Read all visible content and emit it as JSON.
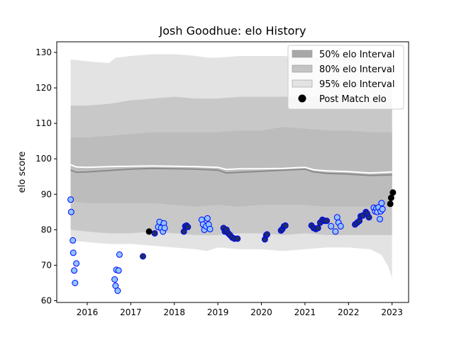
{
  "chart_data": {
    "type": "scatter",
    "title": "Josh Goodhue: elo History",
    "xlabel": "",
    "ylabel": "elo score",
    "xlim": [
      2015.3,
      2023.38
    ],
    "ylim": [
      59.5,
      133
    ],
    "x_ticks": [
      2016,
      2017,
      2018,
      2019,
      2020,
      2021,
      2022,
      2023
    ],
    "y_ticks": [
      60,
      70,
      80,
      90,
      100,
      110,
      120,
      130
    ],
    "grid": false,
    "legend_position": "top-right",
    "legend": [
      {
        "label": "50% elo Interval",
        "kind": "patch",
        "color": "#a8a8a8"
      },
      {
        "label": "80% elo Interval",
        "kind": "patch",
        "color": "#c4c4c4"
      },
      {
        "label": "95% elo Interval",
        "kind": "patch",
        "color": "#e3e3e3"
      },
      {
        "label": "Post Match elo",
        "kind": "marker",
        "color": "#000000"
      }
    ],
    "colors": {
      "band95": "#e3e3e3",
      "band80": "#c8c8c8",
      "band50": "#bcbcbc",
      "median_line": "#8a8a8a",
      "mean_line": "#ffffff",
      "light_point": "#8ec5ff",
      "dark_point": "#1c2f66",
      "point_edge": "#0000ff",
      "black_point": "#000000"
    },
    "series": [
      {
        "name": "95% elo Interval",
        "x": [
          2015.62,
          2016.0,
          2016.5,
          2016.65,
          2017.0,
          2017.5,
          2018.0,
          2018.5,
          2018.75,
          2019.0,
          2019.5,
          2020.0,
          2020.5,
          2021.0,
          2021.5,
          2022.0,
          2022.5,
          2022.75,
          2022.9,
          2023.0
        ],
        "lower": [
          77,
          76.5,
          76,
          76,
          76,
          75.5,
          75,
          74.5,
          74,
          75,
          74.5,
          74.5,
          74,
          74.5,
          75,
          75,
          74.5,
          73,
          70,
          66.5
        ],
        "upper": [
          128,
          127.5,
          127,
          128.5,
          129,
          129.5,
          129.5,
          129,
          128.5,
          128.5,
          129,
          129,
          129,
          128.5,
          128.5,
          128.5,
          128.5,
          128.5,
          129,
          129
        ]
      },
      {
        "name": "80% elo Interval",
        "x": [
          2015.62,
          2016.0,
          2016.5,
          2017.0,
          2017.5,
          2018.0,
          2018.5,
          2019.0,
          2019.5,
          2020.0,
          2020.5,
          2021.0,
          2021.5,
          2022.0,
          2022.5,
          2023.0
        ],
        "lower": [
          80,
          79.5,
          79,
          79,
          79.5,
          79,
          78.5,
          78.5,
          79,
          79,
          78.5,
          79,
          78.5,
          78.5,
          78.5,
          78.5
        ],
        "upper": [
          115,
          115,
          115.5,
          116.5,
          117,
          117.5,
          117,
          117,
          117.5,
          117.5,
          117.5,
          117.5,
          117.5,
          117.5,
          117,
          117
        ]
      },
      {
        "name": "50% elo Interval",
        "x": [
          2015.62,
          2016.0,
          2016.5,
          2017.0,
          2017.5,
          2018.0,
          2018.5,
          2019.0,
          2019.5,
          2020.0,
          2020.5,
          2021.0,
          2021.5,
          2022.0,
          2022.5,
          2023.0
        ],
        "lower": [
          88,
          87.5,
          87.5,
          87.5,
          87.5,
          87,
          86.5,
          87,
          86.5,
          87,
          87,
          87,
          86.5,
          86.5,
          86.5,
          86.5
        ],
        "upper": [
          106,
          106,
          106.5,
          107,
          107.5,
          107.5,
          107.5,
          107.5,
          108,
          108,
          109,
          108.5,
          108,
          108,
          107.5,
          107.5
        ]
      },
      {
        "name": "median",
        "x": [
          2015.62,
          2015.75,
          2016.0,
          2016.5,
          2017.0,
          2017.5,
          2018.0,
          2018.5,
          2019.0,
          2019.2,
          2019.5,
          2020.0,
          2020.5,
          2021.0,
          2021.2,
          2021.5,
          2022.0,
          2022.5,
          2023.0
        ],
        "values": [
          96.8,
          96.2,
          96.3,
          96.7,
          97.1,
          97.3,
          97.2,
          97.1,
          96.8,
          96.0,
          96.2,
          96.5,
          96.8,
          97.1,
          96.3,
          95.9,
          95.7,
          95.3,
          95.5
        ]
      },
      {
        "name": "mean",
        "x": [
          2015.62,
          2015.75,
          2016.0,
          2016.5,
          2017.0,
          2017.5,
          2018.0,
          2018.5,
          2019.0,
          2019.2,
          2019.5,
          2020.0,
          2020.5,
          2021.0,
          2021.2,
          2021.5,
          2022.0,
          2022.5,
          2023.0
        ],
        "values": [
          98.3,
          97.7,
          97.6,
          97.8,
          97.9,
          98.0,
          97.9,
          97.8,
          97.6,
          97.0,
          97.2,
          97.2,
          97.3,
          97.6,
          96.9,
          96.6,
          96.4,
          96.0,
          96.3
        ]
      },
      {
        "name": "Post Match elo",
        "points": [
          {
            "x": 2015.62,
            "y": 88.5,
            "c": "light"
          },
          {
            "x": 2015.63,
            "y": 85.0,
            "c": "light"
          },
          {
            "x": 2015.67,
            "y": 77.0,
            "c": "light"
          },
          {
            "x": 2015.68,
            "y": 73.5,
            "c": "light"
          },
          {
            "x": 2015.7,
            "y": 68.5,
            "c": "light"
          },
          {
            "x": 2015.72,
            "y": 65.0,
            "c": "light"
          },
          {
            "x": 2015.75,
            "y": 70.5,
            "c": "light"
          },
          {
            "x": 2016.63,
            "y": 66.0,
            "c": "light"
          },
          {
            "x": 2016.65,
            "y": 64.2,
            "c": "light"
          },
          {
            "x": 2016.67,
            "y": 68.7,
            "c": "light"
          },
          {
            "x": 2016.7,
            "y": 62.8,
            "c": "light"
          },
          {
            "x": 2016.72,
            "y": 68.5,
            "c": "light"
          },
          {
            "x": 2016.74,
            "y": 73.0,
            "c": "light"
          },
          {
            "x": 2017.28,
            "y": 72.5,
            "c": "dark"
          },
          {
            "x": 2017.42,
            "y": 79.5,
            "c": "black"
          },
          {
            "x": 2017.55,
            "y": 79.0,
            "c": "dark"
          },
          {
            "x": 2017.63,
            "y": 80.8,
            "c": "light"
          },
          {
            "x": 2017.66,
            "y": 82.2,
            "c": "light"
          },
          {
            "x": 2017.7,
            "y": 80.5,
            "c": "light"
          },
          {
            "x": 2017.74,
            "y": 79.5,
            "c": "light"
          },
          {
            "x": 2017.76,
            "y": 81.8,
            "c": "light"
          },
          {
            "x": 2017.78,
            "y": 80.5,
            "c": "light"
          },
          {
            "x": 2018.22,
            "y": 79.5,
            "c": "dark"
          },
          {
            "x": 2018.25,
            "y": 81.0,
            "c": "dark"
          },
          {
            "x": 2018.28,
            "y": 81.2,
            "c": "dark"
          },
          {
            "x": 2018.31,
            "y": 80.8,
            "c": "dark"
          },
          {
            "x": 2018.63,
            "y": 82.8,
            "c": "light"
          },
          {
            "x": 2018.66,
            "y": 81.5,
            "c": "light"
          },
          {
            "x": 2018.69,
            "y": 80.0,
            "c": "light"
          },
          {
            "x": 2018.73,
            "y": 81.0,
            "c": "light"
          },
          {
            "x": 2018.76,
            "y": 83.2,
            "c": "light"
          },
          {
            "x": 2018.79,
            "y": 81.5,
            "c": "light"
          },
          {
            "x": 2018.82,
            "y": 80.2,
            "c": "light"
          },
          {
            "x": 2019.13,
            "y": 80.5,
            "c": "dark"
          },
          {
            "x": 2019.16,
            "y": 79.5,
            "c": "dark"
          },
          {
            "x": 2019.2,
            "y": 80.0,
            "c": "dark"
          },
          {
            "x": 2019.24,
            "y": 79.0,
            "c": "dark"
          },
          {
            "x": 2019.28,
            "y": 78.5,
            "c": "dark"
          },
          {
            "x": 2019.33,
            "y": 77.8,
            "c": "dark"
          },
          {
            "x": 2019.38,
            "y": 77.5,
            "c": "dark"
          },
          {
            "x": 2019.45,
            "y": 77.5,
            "c": "dark"
          },
          {
            "x": 2020.08,
            "y": 77.3,
            "c": "dark"
          },
          {
            "x": 2020.11,
            "y": 78.5,
            "c": "dark"
          },
          {
            "x": 2020.13,
            "y": 78.7,
            "c": "dark"
          },
          {
            "x": 2020.45,
            "y": 79.8,
            "c": "dark"
          },
          {
            "x": 2020.48,
            "y": 80.2,
            "c": "dark"
          },
          {
            "x": 2020.52,
            "y": 81.0,
            "c": "dark"
          },
          {
            "x": 2020.55,
            "y": 81.2,
            "c": "dark"
          },
          {
            "x": 2021.15,
            "y": 81.2,
            "c": "dark"
          },
          {
            "x": 2021.2,
            "y": 80.5,
            "c": "dark"
          },
          {
            "x": 2021.25,
            "y": 80.2,
            "c": "dark"
          },
          {
            "x": 2021.3,
            "y": 80.5,
            "c": "dark"
          },
          {
            "x": 2021.35,
            "y": 82.0,
            "c": "dark"
          },
          {
            "x": 2021.4,
            "y": 82.8,
            "c": "dark"
          },
          {
            "x": 2021.45,
            "y": 82.5,
            "c": "dark"
          },
          {
            "x": 2021.5,
            "y": 82.5,
            "c": "dark"
          },
          {
            "x": 2021.6,
            "y": 81.0,
            "c": "light"
          },
          {
            "x": 2021.7,
            "y": 79.5,
            "c": "light"
          },
          {
            "x": 2021.74,
            "y": 83.5,
            "c": "light"
          },
          {
            "x": 2021.77,
            "y": 82.0,
            "c": "light"
          },
          {
            "x": 2021.82,
            "y": 81.0,
            "c": "light"
          },
          {
            "x": 2022.15,
            "y": 81.5,
            "c": "dark"
          },
          {
            "x": 2022.2,
            "y": 82.0,
            "c": "dark"
          },
          {
            "x": 2022.25,
            "y": 82.5,
            "c": "dark"
          },
          {
            "x": 2022.28,
            "y": 83.8,
            "c": "dark"
          },
          {
            "x": 2022.33,
            "y": 84.0,
            "c": "dark"
          },
          {
            "x": 2022.4,
            "y": 85.0,
            "c": "dark"
          },
          {
            "x": 2022.43,
            "y": 84.5,
            "c": "dark"
          },
          {
            "x": 2022.47,
            "y": 83.5,
            "c": "dark"
          },
          {
            "x": 2022.58,
            "y": 86.2,
            "c": "light"
          },
          {
            "x": 2022.61,
            "y": 85.2,
            "c": "light"
          },
          {
            "x": 2022.64,
            "y": 86.0,
            "c": "light"
          },
          {
            "x": 2022.66,
            "y": 85.0,
            "c": "light"
          },
          {
            "x": 2022.69,
            "y": 86.3,
            "c": "light"
          },
          {
            "x": 2022.72,
            "y": 83.0,
            "c": "light"
          },
          {
            "x": 2022.74,
            "y": 85.2,
            "c": "light"
          },
          {
            "x": 2022.76,
            "y": 87.5,
            "c": "light"
          },
          {
            "x": 2022.78,
            "y": 85.8,
            "c": "light"
          },
          {
            "x": 2022.96,
            "y": 87.3,
            "c": "black"
          },
          {
            "x": 2022.98,
            "y": 89.0,
            "c": "black"
          },
          {
            "x": 2023.02,
            "y": 90.5,
            "c": "black"
          }
        ]
      }
    ]
  }
}
